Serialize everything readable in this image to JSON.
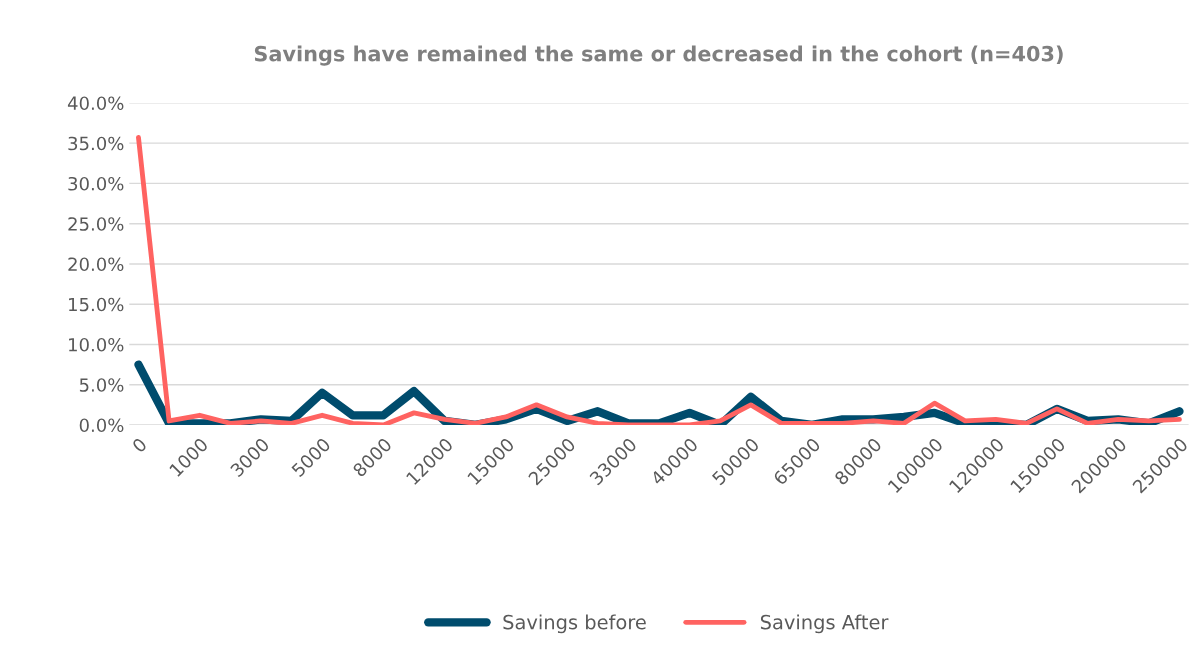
{
  "chart_data": {
    "type": "line",
    "title": "Savings have remained the same or decreased in the cohort (n=403)",
    "categories": [
      "0",
      null,
      "1000",
      null,
      "3000",
      null,
      "5000",
      null,
      "8000",
      null,
      "12000",
      null,
      "15000",
      null,
      "25000",
      null,
      "33000",
      null,
      "40000",
      null,
      "50000",
      null,
      "65000",
      null,
      "80000",
      null,
      "100000",
      null,
      "120000",
      null,
      "150000",
      null,
      "200000",
      null,
      "250000"
    ],
    "series": [
      {
        "name": "Savings before",
        "color": "#004c6d",
        "values": [
          7.5,
          0.2,
          0.2,
          0.2,
          0.7,
          0.5,
          4.0,
          1.2,
          1.2,
          4.2,
          0.5,
          0,
          0.7,
          2.0,
          0.5,
          1.7,
          0.2,
          0.2,
          1.5,
          0,
          3.5,
          0.5,
          0,
          0.7,
          0.7,
          1.0,
          1.5,
          0.2,
          0.2,
          0,
          2.0,
          0.5,
          0.7,
          0.2,
          1.7
        ]
      },
      {
        "name": "Savings After",
        "color": "#ff6361",
        "values": [
          35.7,
          0.5,
          1.2,
          0.2,
          0.5,
          0.2,
          1.2,
          0.2,
          0,
          1.5,
          0.7,
          0.2,
          1.0,
          2.5,
          1.0,
          0.2,
          0,
          0,
          0,
          0.5,
          2.5,
          0.2,
          0.2,
          0.2,
          0.5,
          0.2,
          2.7,
          0.5,
          0.7,
          0.2,
          2.0,
          0.2,
          0.7,
          0.5,
          0.7
        ]
      }
    ],
    "ylim": [
      0,
      40
    ],
    "yticks": [
      {
        "value": 0,
        "label": "0.0%"
      },
      {
        "value": 5,
        "label": "5.0%"
      },
      {
        "value": 10,
        "label": "10.0%"
      },
      {
        "value": 15,
        "label": "15.0%"
      },
      {
        "value": 20,
        "label": "20.0%"
      },
      {
        "value": 25,
        "label": "25.0%"
      },
      {
        "value": 30,
        "label": "30.0%"
      },
      {
        "value": 35,
        "label": "35.0%"
      },
      {
        "value": 40,
        "label": "40.0%"
      }
    ],
    "grid": "y",
    "legend": "bottom",
    "marker": "none",
    "line_style": "solid"
  }
}
